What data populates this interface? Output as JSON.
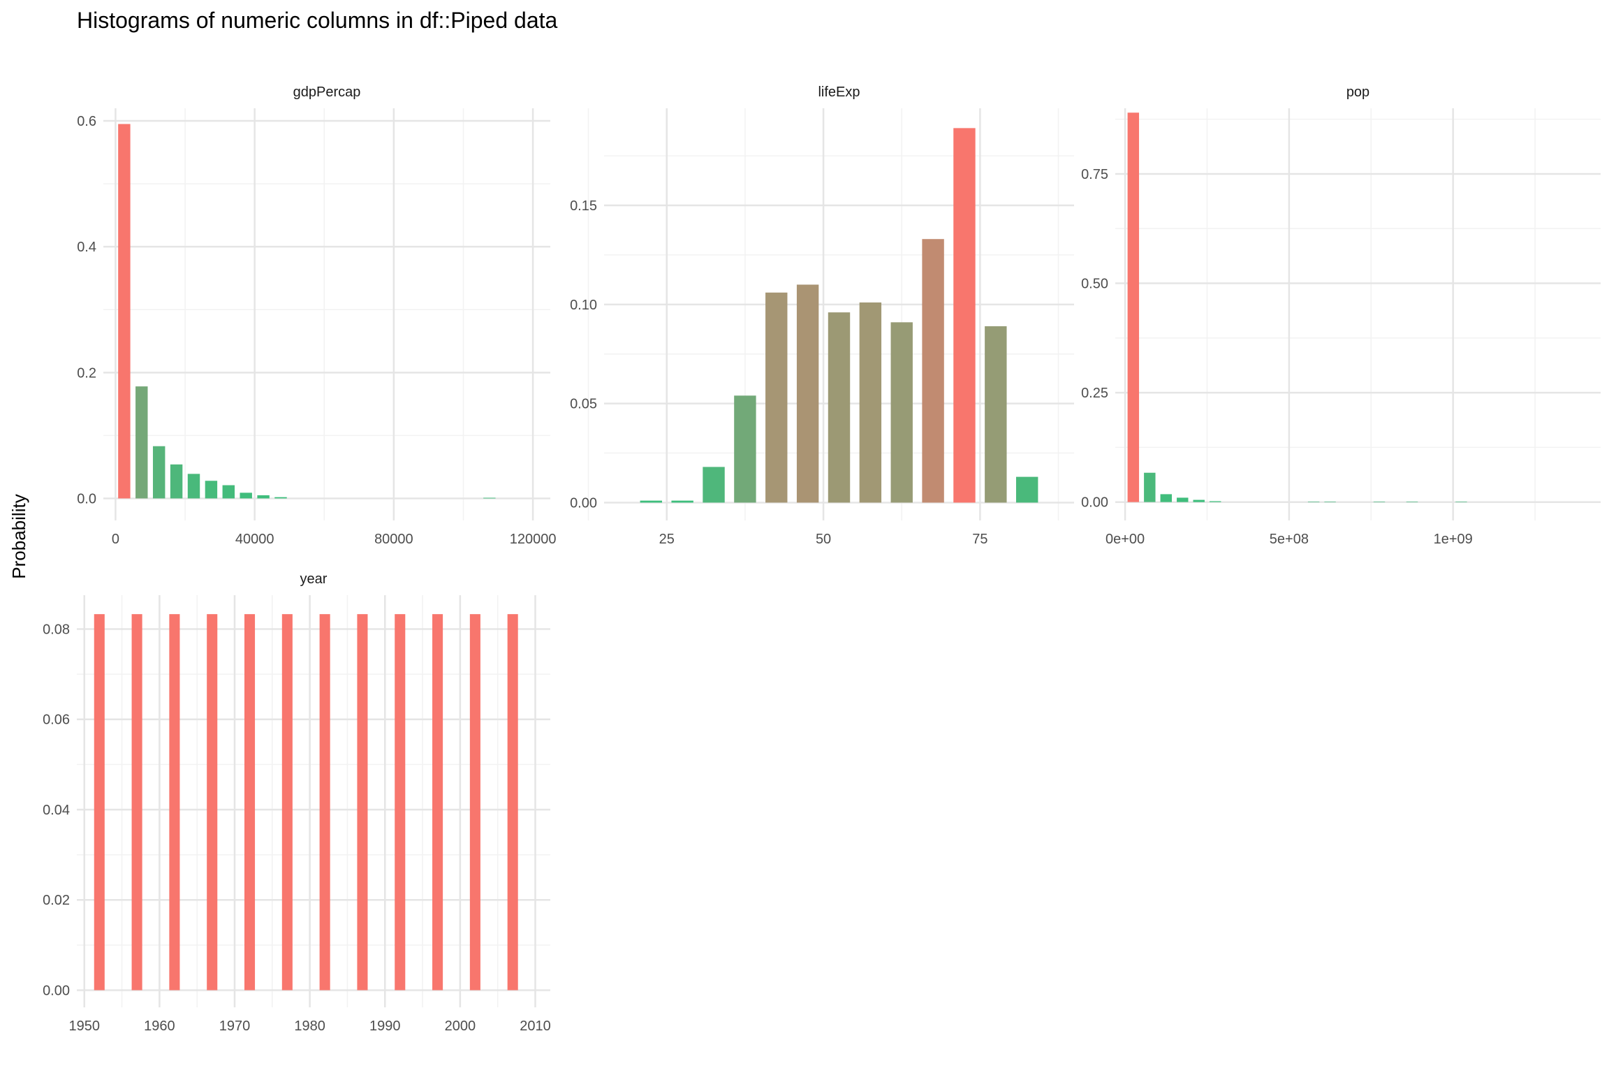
{
  "chart_data": {
    "type": "bar",
    "title": "Histograms of numeric columns in df::Piped data",
    "ylabel": "Probability",
    "xlabel": "",
    "grid": true,
    "legend": "none",
    "colors": {
      "high": "#F8766D",
      "low": "#3DBE7C"
    },
    "panels": [
      {
        "name": "gdpPercap",
        "xlim": [
          -3500,
          125000
        ],
        "ylim": [
          -0.035,
          0.62
        ],
        "xticks": [
          0,
          40000,
          80000,
          120000
        ],
        "xtick_labels": [
          "0",
          "40000",
          "80000",
          "120000"
        ],
        "xminor": [
          20000,
          60000,
          100000
        ],
        "yticks": [
          0,
          0.2,
          0.4,
          0.6
        ],
        "ytick_labels": [
          "0.0",
          "0.2",
          "0.4",
          "0.6"
        ],
        "yminor": [
          0.1,
          0.3,
          0.5
        ],
        "bin_width": 5000,
        "bar_fraction": 0.7,
        "x": [
          2500,
          7500,
          12500,
          17500,
          22500,
          27500,
          32500,
          37500,
          42500,
          47500,
          107500
        ],
        "values": [
          0.595,
          0.178,
          0.083,
          0.054,
          0.039,
          0.028,
          0.021,
          0.009,
          0.005,
          0.002,
          0.001
        ]
      },
      {
        "name": "lifeExp",
        "xlim": [
          15,
          90
        ],
        "ylim": [
          -0.009,
          0.199
        ],
        "xticks": [
          25,
          50,
          75
        ],
        "xtick_labels": [
          "25",
          "50",
          "75"
        ],
        "xminor": [
          12.5,
          37.5,
          62.5,
          87.5
        ],
        "yticks": [
          0,
          0.05,
          0.1,
          0.15
        ],
        "ytick_labels": [
          "0.00",
          "0.05",
          "0.10",
          "0.15"
        ],
        "yminor": [
          0.025,
          0.075,
          0.125,
          0.175
        ],
        "bin_width": 5,
        "bar_fraction": 0.7,
        "x": [
          22.5,
          27.5,
          32.5,
          37.5,
          42.5,
          47.5,
          52.5,
          57.5,
          62.5,
          67.5,
          72.5,
          77.5,
          82.5
        ],
        "values": [
          0.001,
          0.001,
          0.018,
          0.054,
          0.106,
          0.11,
          0.096,
          0.101,
          0.091,
          0.133,
          0.189,
          0.089,
          0.013
        ]
      },
      {
        "name": "pop",
        "xlim": [
          -30000000,
          1450000000
        ],
        "ylim": [
          -0.042,
          0.9
        ],
        "xticks": [
          0,
          500000000,
          1000000000
        ],
        "xtick_labels": [
          "0e+00",
          "5e+08",
          "1e+09"
        ],
        "xminor": [
          250000000,
          750000000,
          1250000000
        ],
        "yticks": [
          0,
          0.25,
          0.5,
          0.75
        ],
        "ytick_labels": [
          "0.00",
          "0.25",
          "0.50",
          "0.75"
        ],
        "yminor": [
          0.125,
          0.375,
          0.625,
          0.875
        ],
        "bin_width": 50000000,
        "bar_fraction": 0.7,
        "x": [
          25000000,
          75000000,
          125000000,
          175000000,
          225000000,
          275000000,
          575000000,
          625000000,
          775000000,
          875000000,
          1025000000
        ],
        "values": [
          0.89,
          0.067,
          0.018,
          0.01,
          0.005,
          0.002,
          0.001,
          0.001,
          0.001,
          0.001,
          0.001
        ]
      },
      {
        "name": "year",
        "xlim": [
          1949,
          2012
        ],
        "ylim": [
          -0.0038,
          0.0875
        ],
        "xticks": [
          1950,
          1960,
          1970,
          1980,
          1990,
          2000,
          2010
        ],
        "xtick_labels": [
          "1950",
          "1960",
          "1970",
          "1980",
          "1990",
          "2000",
          "2010"
        ],
        "xminor": [
          1955,
          1965,
          1975,
          1985,
          1995,
          2005
        ],
        "yticks": [
          0,
          0.02,
          0.04,
          0.06,
          0.08
        ],
        "ytick_labels": [
          "0.00",
          "0.02",
          "0.04",
          "0.06",
          "0.08"
        ],
        "yminor": [
          0.01,
          0.03,
          0.05,
          0.07
        ],
        "bin_width": 5,
        "bar_fraction": 0.28,
        "x": [
          1952,
          1957,
          1962,
          1967,
          1972,
          1977,
          1982,
          1987,
          1992,
          1997,
          2002,
          2007
        ],
        "values": [
          0.0833,
          0.0833,
          0.0833,
          0.0833,
          0.0833,
          0.0833,
          0.0833,
          0.0833,
          0.0833,
          0.0833,
          0.0833,
          0.0833
        ]
      }
    ]
  }
}
